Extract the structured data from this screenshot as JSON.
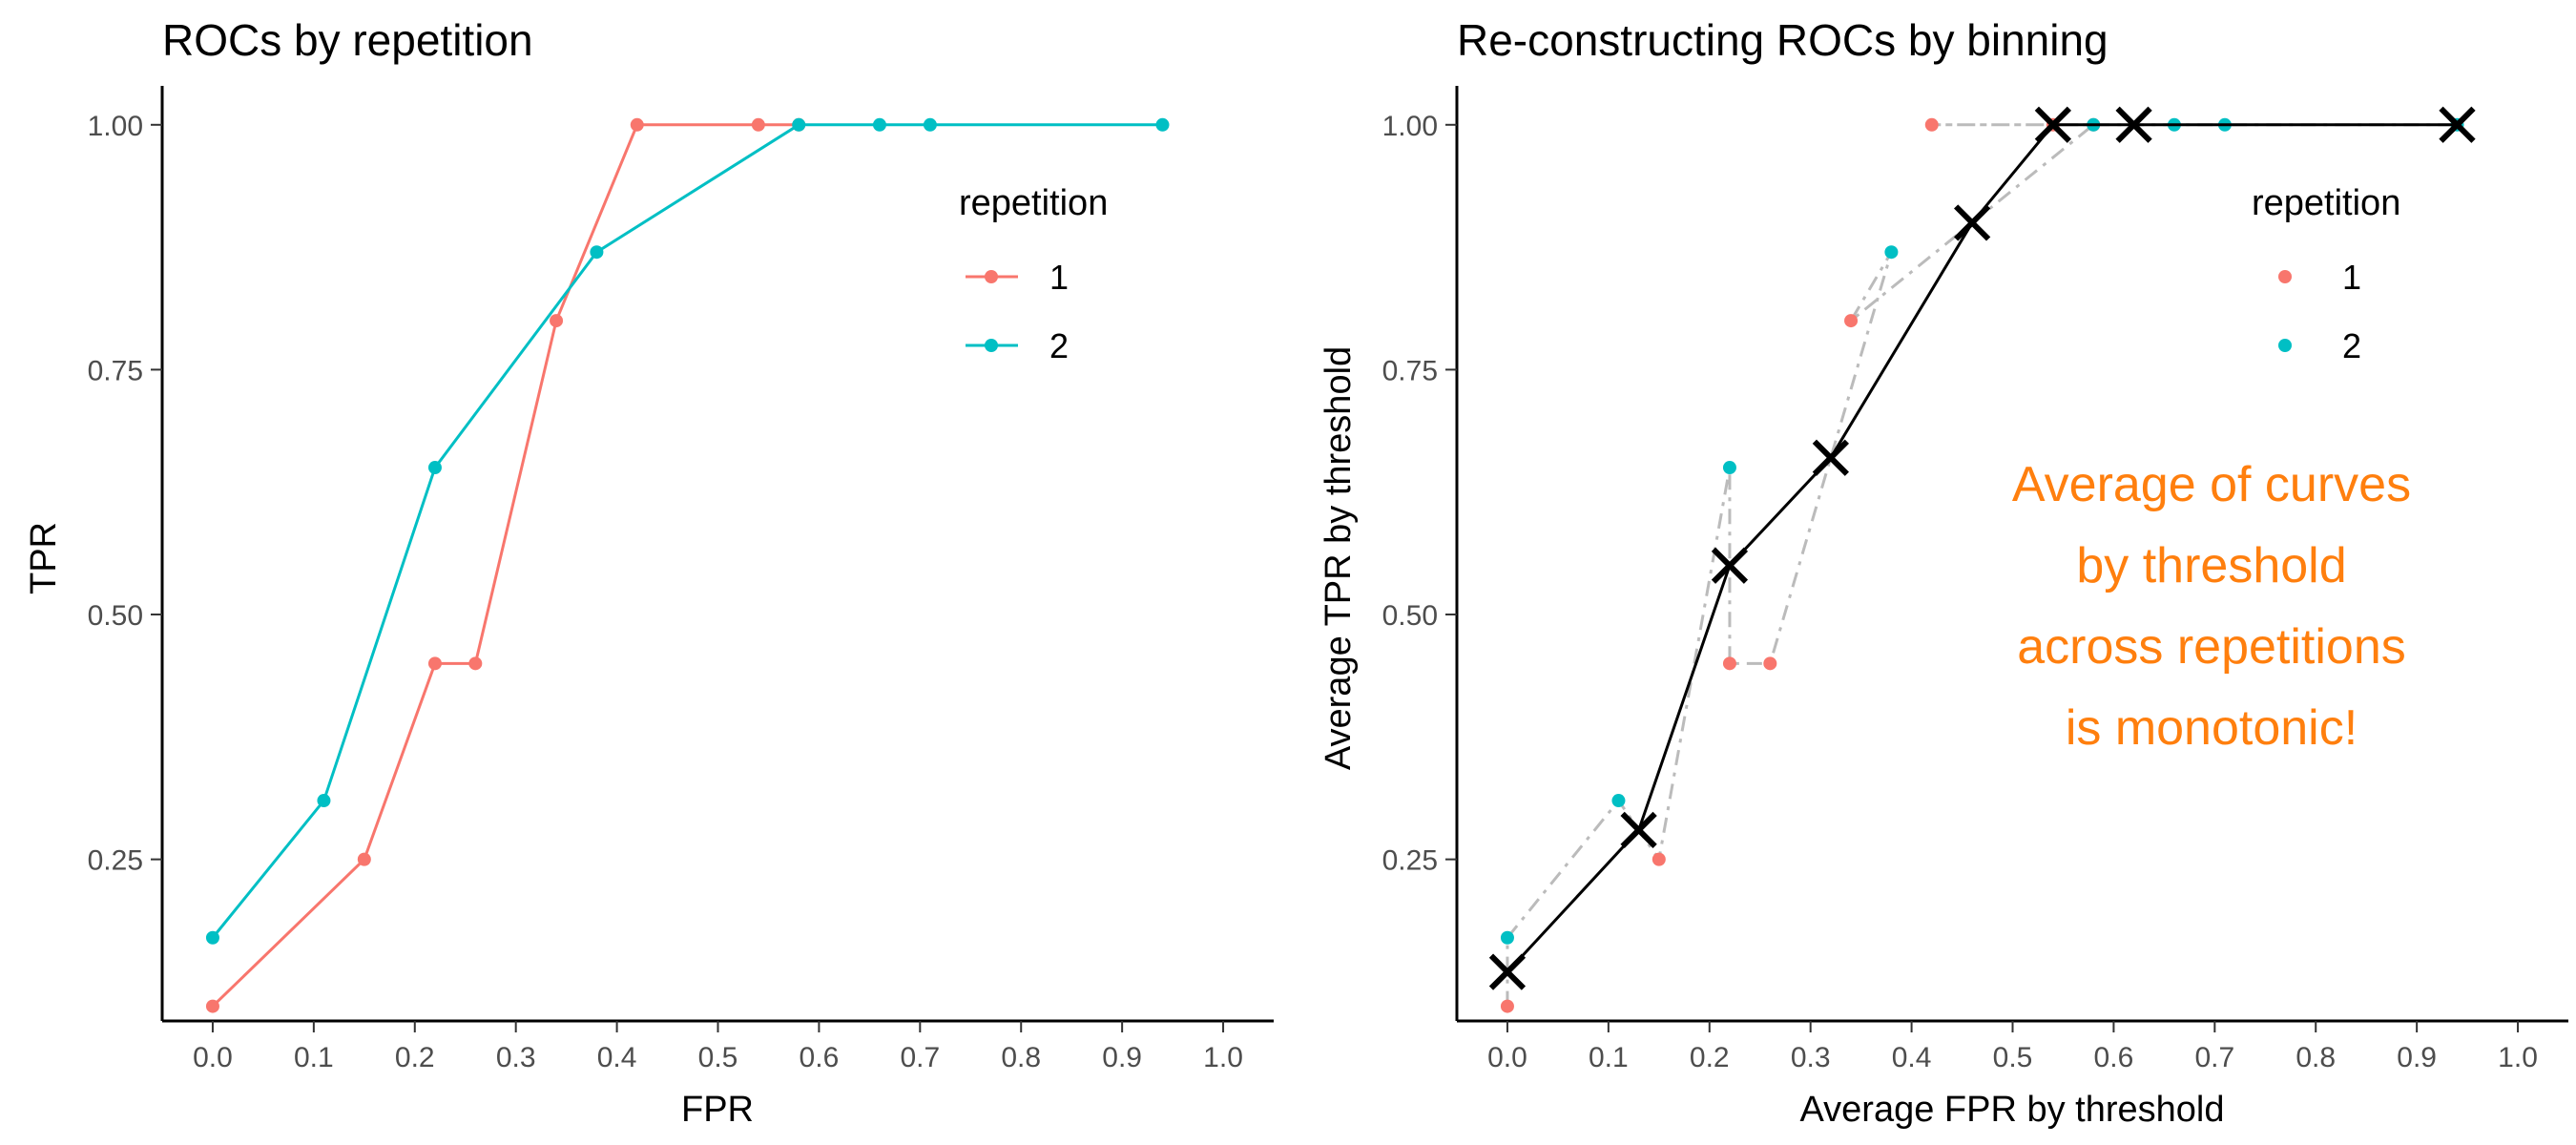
{
  "chart_data": [
    {
      "type": "line",
      "title": "ROCs by repetition",
      "xlabel": "FPR",
      "ylabel": "TPR",
      "xlim": [
        -0.05,
        1.05
      ],
      "ylim": [
        0.085,
        1.03
      ],
      "x_ticks": [
        "0.0",
        "0.1",
        "0.2",
        "0.3",
        "0.4",
        "0.5",
        "0.6",
        "0.7",
        "0.8",
        "0.9",
        "1.0"
      ],
      "y_ticks": [
        "0.25",
        "0.50",
        "0.75",
        "1.00"
      ],
      "grid": false,
      "legend": {
        "title": "repetition",
        "position": "top-right",
        "entries": [
          "1",
          "2"
        ]
      },
      "series": [
        {
          "name": "1",
          "color": "#F8766D",
          "points": [
            [
              0.0,
              0.1
            ],
            [
              0.15,
              0.25
            ],
            [
              0.22,
              0.45
            ],
            [
              0.26,
              0.45
            ],
            [
              0.34,
              0.8
            ],
            [
              0.42,
              1.0
            ],
            [
              0.54,
              1.0
            ],
            [
              0.58,
              1.0
            ]
          ]
        },
        {
          "name": "2",
          "color": "#00BFC4",
          "points": [
            [
              0.0,
              0.17
            ],
            [
              0.11,
              0.31
            ],
            [
              0.22,
              0.65
            ],
            [
              0.38,
              0.87
            ],
            [
              0.58,
              1.0
            ],
            [
              0.66,
              1.0
            ],
            [
              0.71,
              1.0
            ],
            [
              0.94,
              1.0
            ]
          ]
        }
      ]
    },
    {
      "type": "scatter",
      "title": "Re-constructing ROCs by binning",
      "xlabel": "Average FPR by threshold",
      "ylabel": "Average TPR by threshold",
      "xlim": [
        -0.05,
        1.05
      ],
      "ylim": [
        0.085,
        1.03
      ],
      "x_ticks": [
        "0.0",
        "0.1",
        "0.2",
        "0.3",
        "0.4",
        "0.5",
        "0.6",
        "0.7",
        "0.8",
        "0.9",
        "1.0"
      ],
      "y_ticks": [
        "0.25",
        "0.50",
        "0.75",
        "1.00"
      ],
      "grid": false,
      "legend": {
        "title": "repetition",
        "position": "top-right",
        "entries": [
          "1",
          "2"
        ]
      },
      "annotation": [
        "Average of curves",
        "by threshold",
        "across repetitions",
        "is monotonic!"
      ],
      "annotation_color": "#FF7F0E",
      "series": [
        {
          "name": "1",
          "color": "#F8766D",
          "points": [
            [
              0.0,
              0.1
            ],
            [
              0.15,
              0.25
            ],
            [
              0.22,
              0.45
            ],
            [
              0.26,
              0.45
            ],
            [
              0.34,
              0.8
            ],
            [
              0.42,
              1.0
            ],
            [
              0.54,
              1.0
            ],
            [
              0.58,
              1.0
            ]
          ]
        },
        {
          "name": "2",
          "color": "#00BFC4",
          "points": [
            [
              0.0,
              0.17
            ],
            [
              0.11,
              0.31
            ],
            [
              0.22,
              0.65
            ],
            [
              0.38,
              0.87
            ],
            [
              0.58,
              1.0
            ],
            [
              0.66,
              1.0
            ],
            [
              0.71,
              1.0
            ],
            [
              0.94,
              1.0
            ]
          ]
        }
      ],
      "average_curve": {
        "color": "#000000",
        "points": [
          [
            0.0,
            0.135
          ],
          [
            0.13,
            0.28
          ],
          [
            0.22,
            0.55
          ],
          [
            0.32,
            0.66
          ],
          [
            0.46,
            0.9
          ],
          [
            0.54,
            1.0
          ],
          [
            0.62,
            1.0
          ],
          [
            0.94,
            1.0
          ]
        ]
      },
      "average_dashed": {
        "color": "#BBBBBB",
        "points": [
          [
            0.0,
            0.1
          ],
          [
            0.0,
            0.17
          ],
          [
            0.11,
            0.31
          ],
          [
            0.15,
            0.25
          ],
          [
            0.22,
            0.65
          ],
          [
            0.22,
            0.45
          ],
          [
            0.26,
            0.45
          ],
          [
            0.38,
            0.87
          ],
          [
            0.34,
            0.8
          ],
          [
            0.58,
            1.0
          ],
          [
            0.42,
            1.0
          ],
          [
            0.54,
            1.0
          ],
          [
            0.71,
            1.0
          ],
          [
            0.94,
            1.0
          ]
        ]
      }
    }
  ]
}
